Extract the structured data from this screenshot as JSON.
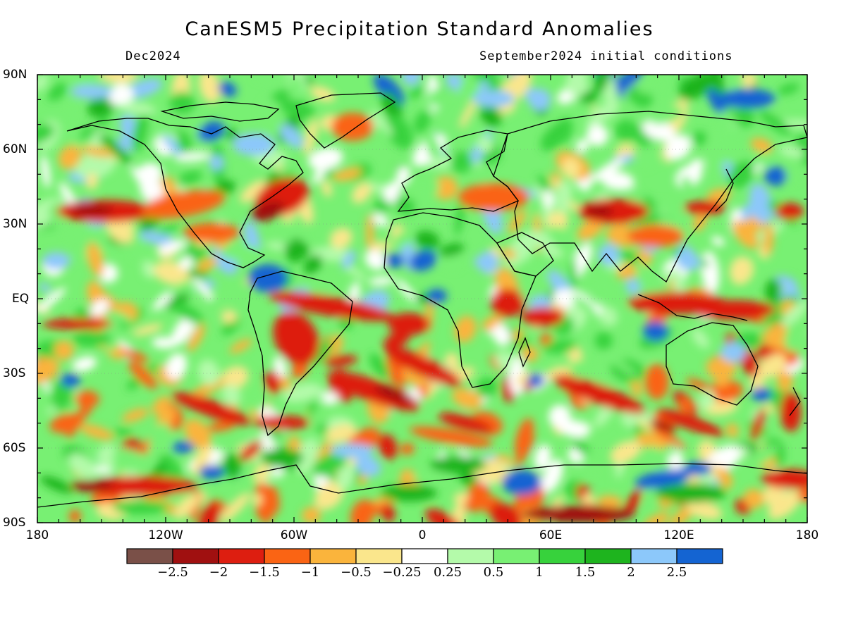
{
  "header": {
    "title": "CanESM5 Precipitation Standard Anomalies",
    "valid_month": "Dec2024",
    "init_conditions": "September2024 initial conditions"
  },
  "axes": {
    "lat_labels": [
      "90N",
      "60N",
      "30N",
      "EQ",
      "30S",
      "60S",
      "90S"
    ],
    "lon_labels": [
      "180",
      "120W",
      "60W",
      "0",
      "60E",
      "120E",
      "180"
    ]
  },
  "legend": {
    "colors": [
      "#7a5048",
      "#a01010",
      "#dd1e10",
      "#fa6414",
      "#fab43c",
      "#fae68c",
      "#ffffff",
      "#b4faaa",
      "#78f073",
      "#37d23c",
      "#1eb41e",
      "#8cc8fa",
      "#1464d2"
    ],
    "labels": [
      "−2.5",
      "−2",
      "−1.5",
      "−1",
      "−0.5",
      "−0.25",
      "0.25",
      "0.5",
      "1",
      "1.5",
      "2",
      "2.5"
    ]
  }
}
